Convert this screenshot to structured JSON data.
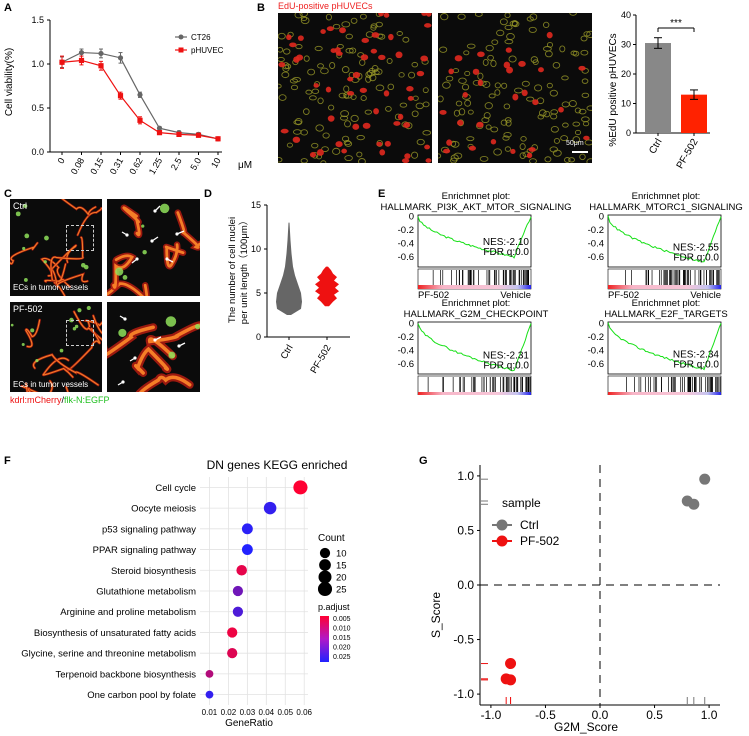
{
  "panel_letters": {
    "a": "A",
    "b": "B",
    "c": "C",
    "d": "D",
    "e": "E",
    "f": "F",
    "g": "G"
  },
  "panel_a": {
    "chart_data": {
      "type": "line",
      "ylabel": "Cell viability(%)",
      "xunit": "μM",
      "categories": [
        "0",
        "0.08",
        "0.15",
        "0.31",
        "0.62",
        "1.25",
        "2.5",
        "5.0",
        "10"
      ],
      "yticks": [
        "0.0",
        "0.5",
        "1.0",
        "1.5"
      ],
      "ylim": [
        0,
        1.5
      ],
      "series": [
        {
          "name": "CT26",
          "color": "#666666",
          "values": [
            1.02,
            1.13,
            1.12,
            1.07,
            0.65,
            0.27,
            0.22,
            0.2,
            0.15
          ],
          "err": [
            0.06,
            0.04,
            0.05,
            0.06,
            0.03,
            0.02,
            0.02,
            0.02,
            0.02
          ]
        },
        {
          "name": "pHUVEC",
          "color": "#ee1111",
          "values": [
            1.02,
            1.04,
            0.98,
            0.64,
            0.36,
            0.22,
            0.2,
            0.19,
            0.15
          ],
          "err": [
            0.07,
            0.05,
            0.05,
            0.04,
            0.04,
            0.02,
            0.02,
            0.02,
            0.02
          ]
        }
      ]
    }
  },
  "panel_b": {
    "title": "EdU-positive pHUVECs",
    "scalebar": "50μm",
    "chart_data": {
      "type": "bar",
      "ylabel": "%EdU positive pHUVECs",
      "categories": [
        "Ctrl",
        "PF-502"
      ],
      "values": [
        30.5,
        13.0
      ],
      "err": [
        1.8,
        1.6
      ],
      "colors": [
        "#888888",
        "#ff2200"
      ],
      "yticks": [
        "0",
        "10",
        "20",
        "30",
        "40"
      ],
      "ylim": [
        0,
        40
      ],
      "significance": "***"
    }
  },
  "panel_c": {
    "ctrl_label": "Ctrl",
    "pf_label": "PF-502",
    "caption": "ECs in tumor vessels",
    "legend_red": "kdrl:mCherry",
    "legend_sep": "/",
    "legend_green": "flk-N:EGFP"
  },
  "panel_d": {
    "chart_data": {
      "type": "violin",
      "ylabel_line1": "The number of cell nuclei",
      "ylabel_line2": "per unit length（100μm）",
      "categories": [
        "Ctrl",
        "PF-502"
      ],
      "colors": [
        "#666666",
        "#ee1111"
      ],
      "yticks": [
        "0",
        "5",
        "10",
        "15"
      ],
      "ylim": [
        0,
        15
      ],
      "series": [
        {
          "name": "Ctrl",
          "min": 2.5,
          "max": 13,
          "median": 5.0
        },
        {
          "name": "PF-502",
          "min": 3.5,
          "max": 8,
          "median": 5.7
        }
      ]
    }
  },
  "panel_e": {
    "plots": [
      {
        "title1": "Enrichmnet plot:",
        "title2": "HALLMARK_PI3K_AKT_MTOR_SIGNALING",
        "nes": "NES:-2.10",
        "fdr": "FDR q:0.0",
        "left": "PF-502",
        "right": "Vehicle",
        "min": -0.6
      },
      {
        "title1": "Enrichmnet plot:",
        "title2": "HALLMARK_MTORC1_SIGNALING",
        "nes": "NES:-2.55",
        "fdr": "FDR q:0.0",
        "left": "PF-502",
        "right": "Vehicle",
        "min": -0.68
      },
      {
        "title1": "Enrichmnet plot:",
        "title2": "HALLMARK_G2M_CHECKPOINT",
        "nes": "NES:-2.31",
        "fdr": "FDR q:0.0",
        "left": "PF-502",
        "right": "Vehicle",
        "min": -0.7
      },
      {
        "title1": "Enrichmnet plot:",
        "title2": "HALLMARK_E2F_TARGETS",
        "nes": "NES:-2.34",
        "fdr": "FDR q:0.0",
        "left": "PF-502",
        "right": "Vehicle",
        "min": -0.68
      }
    ],
    "yticks": [
      "0",
      "-0.2",
      "-0.4",
      "-0.6"
    ]
  },
  "panel_f": {
    "chart_data": {
      "type": "scatter",
      "title": "DN genes KEGG enriched",
      "xlabel": "GeneRatio",
      "xticks": [
        "0.01",
        "0.02",
        "0.03",
        "0.04",
        "0.05",
        "0.06"
      ],
      "xlim": [
        0.005,
        0.062
      ],
      "categories": [
        "Cell cycle",
        "Oocyte meiosis",
        "p53 signaling pathway",
        "PPAR signaling pathway",
        "Steroid biosynthesis",
        "Glutathione metabolism",
        "Arginine and proline metabolism",
        "Biosynthesis of unsaturated fatty acids",
        "Glycine, serine and threonine metabolism",
        "Terpenoid backbone biosynthesis",
        "One carbon pool by folate"
      ],
      "x": [
        0.058,
        0.042,
        0.03,
        0.03,
        0.027,
        0.025,
        0.025,
        0.022,
        0.022,
        0.01,
        0.01
      ],
      "count": [
        25,
        18,
        12,
        12,
        11,
        10,
        10,
        10,
        10,
        4,
        4
      ],
      "p_adjust": [
        0.001,
        0.025,
        0.026,
        0.027,
        0.004,
        0.018,
        0.022,
        0.003,
        0.005,
        0.01,
        0.025
      ],
      "legend_count_title": "Count",
      "legend_count_values": [
        "10",
        "15",
        "20",
        "25"
      ],
      "legend_p_title": "p.adjust",
      "legend_p_values": [
        "0.005",
        "0.010",
        "0.015",
        "0.020",
        "0.025"
      ]
    }
  },
  "panel_g": {
    "chart_data": {
      "type": "scatter",
      "xlabel": "G2M_Score",
      "ylabel": "S_Score",
      "xticks": [
        "-1.0",
        "-0.5",
        "0.0",
        "0.5",
        "1.0"
      ],
      "yticks": [
        "1.0",
        "0.5",
        "0.0",
        "-0.5",
        "-1.0"
      ],
      "xlim": [
        -1.1,
        1.1
      ],
      "ylim": [
        -1.1,
        1.1
      ],
      "legend_title": "sample",
      "series": [
        {
          "name": "Ctrl",
          "color": "#777777",
          "x": [
            0.96,
            0.8,
            0.86
          ],
          "y": [
            0.97,
            0.77,
            0.74
          ]
        },
        {
          "name": "PF-502",
          "color": "#ee1111",
          "x": [
            -0.82,
            -0.86,
            -0.82
          ],
          "y": [
            -0.72,
            -0.86,
            -0.87
          ]
        }
      ]
    }
  }
}
